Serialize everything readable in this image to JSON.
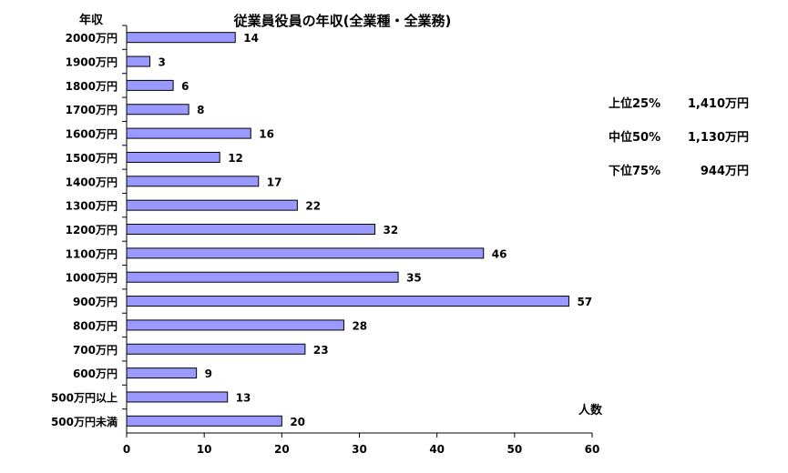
{
  "chart_data": {
    "type": "bar",
    "orientation": "horizontal",
    "title": "従業員役員の年収(全業種・全業務)",
    "ylabel": "年収",
    "xlabel": "人数",
    "categories": [
      "2000万円",
      "1900万円",
      "1800万円",
      "1700万円",
      "1600万円",
      "1500万円",
      "1400万円",
      "1300万円",
      "1200万円",
      "1100万円",
      "1000万円",
      "900万円",
      "800万円",
      "700万円",
      "600万円",
      "500万円以上",
      "500万円未満"
    ],
    "values": [
      14,
      3,
      6,
      8,
      16,
      12,
      17,
      22,
      32,
      46,
      35,
      57,
      28,
      23,
      9,
      13,
      20
    ],
    "xlim": [
      0,
      60
    ],
    "xticks": [
      0,
      10,
      20,
      30,
      40,
      50,
      60
    ],
    "bar_color": "#9999ff",
    "bar_edge_color": "#000000",
    "grid": false,
    "data_labels": true
  },
  "stats": [
    {
      "label": "上位25%",
      "value": "1,410万円"
    },
    {
      "label": "中位50%",
      "value": "1,130万円"
    },
    {
      "label": "下位75%",
      "value": "944万円"
    }
  ]
}
